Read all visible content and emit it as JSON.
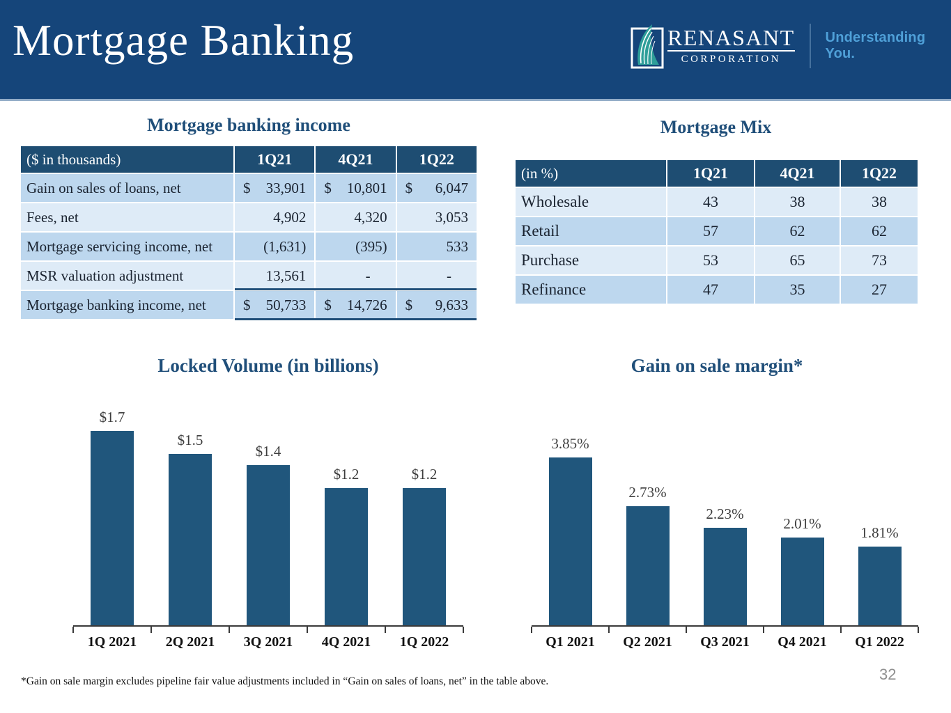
{
  "header": {
    "title": "Mortgage Banking",
    "logo_name": "RENASANT",
    "logo_sub": "CORPORATION",
    "tagline": "Understanding You."
  },
  "income_table": {
    "title": "Mortgage banking income",
    "unit_label": "($ in thousands)",
    "columns": [
      "1Q21",
      "4Q21",
      "1Q22"
    ],
    "rows": [
      {
        "label": "Gain on sales of loans, net",
        "dollar": true,
        "total": false,
        "values": [
          "33,901",
          "10,801",
          "6,047"
        ]
      },
      {
        "label": "Fees, net",
        "dollar": false,
        "total": false,
        "values": [
          "4,902",
          "4,320",
          "3,053"
        ]
      },
      {
        "label": "Mortgage servicing income, net",
        "dollar": false,
        "total": false,
        "values": [
          "(1,631)",
          "(395)",
          "533"
        ]
      },
      {
        "label": "MSR valuation adjustment",
        "dollar": false,
        "total": false,
        "values": [
          "13,561",
          "-",
          "-"
        ]
      },
      {
        "label": "Mortgage banking income, net",
        "dollar": true,
        "total": true,
        "values": [
          "50,733",
          "14,726",
          "9,633"
        ]
      }
    ]
  },
  "mix_table": {
    "title": "Mortgage Mix",
    "unit_label": "(in %)",
    "columns": [
      "1Q21",
      "4Q21",
      "1Q22"
    ],
    "rows": [
      {
        "label": "Wholesale",
        "values": [
          "43",
          "38",
          "38"
        ]
      },
      {
        "label": "Retail",
        "values": [
          "57",
          "62",
          "62"
        ]
      },
      {
        "label": "Purchase",
        "values": [
          "53",
          "65",
          "73"
        ]
      },
      {
        "label": "Refinance",
        "values": [
          "47",
          "35",
          "27"
        ]
      }
    ]
  },
  "chart_data": [
    {
      "type": "bar",
      "title": "Locked Volume (in billions)",
      "categories": [
        "1Q 2021",
        "2Q 2021",
        "3Q 2021",
        "4Q 2021",
        "1Q 2022"
      ],
      "values": [
        1.7,
        1.5,
        1.4,
        1.2,
        1.2
      ],
      "labels": [
        "$1.7",
        "$1.5",
        "$1.4",
        "$1.2",
        "$1.2"
      ],
      "xlabel": "",
      "ylabel": "",
      "ylim": [
        0,
        2.1
      ],
      "grid": false,
      "legend": "none"
    },
    {
      "type": "bar",
      "title": "Gain on sale margin*",
      "categories": [
        "Q1 2021",
        "Q2 2021",
        "Q3 2021",
        "Q4 2021",
        "Q1 2022"
      ],
      "values": [
        3.85,
        2.73,
        2.23,
        2.01,
        1.81
      ],
      "labels": [
        "3.85%",
        "2.73%",
        "2.23%",
        "2.01%",
        "1.81%"
      ],
      "xlabel": "",
      "ylabel": "",
      "ylim": [
        0,
        5.5
      ],
      "grid": false,
      "legend": "none"
    }
  ],
  "footnote": "*Gain on sale margin excludes pipeline fair value adjustments included in “Gain on sales of loans, net” in the table above.",
  "page_number": "32",
  "colors": {
    "band": "#15457A",
    "table_header": "#1E4D72",
    "accent": "#1F4E79",
    "bar": "#20567C",
    "row_medium": "#BDD7EE",
    "row_light": "#DEEBF7",
    "tagline": "#4FA0D8",
    "leaf": "#2E9E99"
  }
}
